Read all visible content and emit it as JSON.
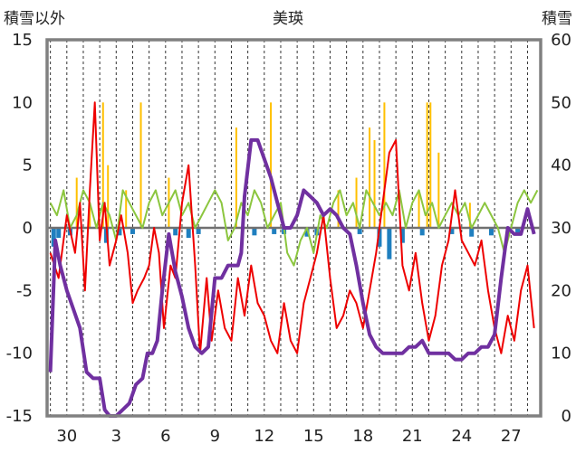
{
  "chart_data": {
    "type": "line",
    "title": "美瑛",
    "left_axis_label": "積雪以外",
    "right_axis_label": "積雪",
    "left_ylim": [
      -15,
      15
    ],
    "left_ticks": [
      15,
      10,
      5,
      0,
      -5,
      -10,
      -15
    ],
    "right_ylim": [
      0,
      60
    ],
    "right_ticks": [
      60,
      50,
      40,
      30,
      20,
      10,
      0
    ],
    "x_ticks": [
      "30",
      "3",
      "6",
      "9",
      "12",
      "15",
      "18",
      "21",
      "24",
      "27"
    ],
    "x_tick_days": [
      1,
      4,
      7,
      10,
      13,
      16,
      19,
      22,
      25,
      28
    ],
    "x_range": [
      -0.2,
      29.8
    ],
    "grid": "vertical-dashed-daily",
    "colors": {
      "temperature_red": "#ee0000",
      "green_series": "#8cc63f",
      "snow_depth": "#7030a0",
      "precip_orange": "#ffc000",
      "blue_bars": "#1f7fbf",
      "frame": "#808080",
      "grid": "#333333"
    },
    "series": [
      {
        "name": "",
        "axis": "left",
        "style": "red-line",
        "x": [
          0,
          0.5,
          1,
          1.5,
          1.8,
          2.1,
          2.4,
          2.7,
          3.0,
          3.3,
          3.6,
          4.0,
          4.3,
          4.7,
          5.0,
          5.3,
          5.7,
          6.0,
          6.3,
          6.6,
          6.9,
          7.3,
          7.6,
          8.0,
          8.4,
          8.8,
          9.1,
          9.5,
          9.8,
          10.2,
          10.6,
          11.0,
          11.4,
          11.8,
          12.2,
          12.6,
          13.0,
          13.4,
          13.8,
          14.2,
          14.6,
          15.0,
          15.4,
          15.8,
          16.2,
          16.6,
          17.0,
          17.4,
          17.8,
          18.2,
          18.6,
          19.0,
          19.4,
          19.8,
          20.2,
          20.6,
          21.0,
          21.4,
          21.8,
          22.2,
          22.6,
          23.0,
          23.4,
          23.8,
          24.2,
          24.6,
          25.0,
          25.4,
          25.8,
          26.2,
          26.6,
          27.0,
          27.4,
          27.8,
          28.2,
          28.6,
          29.0,
          29.4
        ],
        "values": [
          -2,
          -4,
          1,
          -2,
          2,
          -5,
          3,
          10,
          -1,
          2,
          -3,
          -1,
          1,
          -2,
          -6,
          -5,
          -4,
          -3,
          0,
          -2,
          -8,
          -3,
          -4,
          2,
          5,
          -3,
          -10,
          -4,
          -9,
          -5,
          -8,
          -9,
          -4,
          -7,
          -3,
          -6,
          -7,
          -9,
          -10,
          -6,
          -9,
          -10,
          -6,
          -4,
          -2,
          1,
          -4,
          -8,
          -7,
          -5,
          -6,
          -8,
          -5,
          -2,
          2,
          6,
          7,
          -3,
          -5,
          -2,
          -6,
          -9,
          -7,
          -3,
          -1,
          3,
          -1,
          -2,
          -3,
          -1,
          -5,
          -8,
          -10,
          -7,
          -9,
          -5,
          -3,
          -8
        ]
      },
      {
        "name": "",
        "axis": "left",
        "style": "green-line",
        "x": [
          0,
          0.4,
          0.8,
          1.2,
          1.6,
          2.0,
          2.4,
          2.8,
          3.2,
          3.6,
          4.0,
          4.4,
          4.8,
          5.2,
          5.6,
          6.0,
          6.4,
          6.8,
          7.2,
          7.6,
          8.0,
          8.4,
          8.8,
          9.2,
          9.6,
          10.0,
          10.4,
          10.8,
          11.2,
          11.6,
          12.0,
          12.4,
          12.8,
          13.2,
          13.6,
          14.0,
          14.4,
          14.8,
          15.2,
          15.6,
          16.0,
          16.4,
          16.8,
          17.2,
          17.6,
          18.0,
          18.4,
          18.8,
          19.2,
          19.6,
          20.0,
          20.4,
          20.8,
          21.2,
          21.6,
          22.0,
          22.4,
          22.8,
          23.2,
          23.6,
          24.0,
          24.4,
          24.8,
          25.2,
          25.6,
          26.0,
          26.4,
          26.8,
          27.2,
          27.6,
          28.0,
          28.4,
          28.8,
          29.2,
          29.6
        ],
        "values": [
          2,
          1,
          3,
          0,
          1,
          3,
          2,
          0,
          2,
          1,
          -1,
          3,
          2,
          1,
          0,
          2,
          3,
          1,
          2,
          3,
          1,
          2,
          0,
          1,
          2,
          3,
          2,
          -1,
          0,
          2,
          1,
          3,
          2,
          0,
          1,
          2,
          -2,
          -3,
          -1,
          0,
          -2,
          1,
          0,
          2,
          3,
          1,
          2,
          0,
          3,
          2,
          1,
          2,
          1,
          3,
          0,
          2,
          3,
          1,
          2,
          0,
          1,
          2,
          1,
          2,
          0,
          1,
          2,
          1,
          0,
          -2,
          0,
          2,
          3,
          2,
          3
        ]
      },
      {
        "name": "",
        "axis": "right",
        "style": "purple-thick-line",
        "x": [
          0,
          0.3,
          0.6,
          1.0,
          1.4,
          1.8,
          2.2,
          2.6,
          3.0,
          3.3,
          3.6,
          4.0,
          4.4,
          4.8,
          5.2,
          5.6,
          5.9,
          6.2,
          6.5,
          6.8,
          7.2,
          7.6,
          8.0,
          8.4,
          8.8,
          9.2,
          9.6,
          10.0,
          10.4,
          10.8,
          11.2,
          11.4,
          11.6,
          11.8,
          12.2,
          12.6,
          13.0,
          13.4,
          13.8,
          14.2,
          14.6,
          15.0,
          15.4,
          15.8,
          16.2,
          16.6,
          17.0,
          17.4,
          17.8,
          18.2,
          18.6,
          19.0,
          19.4,
          19.8,
          20.2,
          20.6,
          21.0,
          21.4,
          21.8,
          22.2,
          22.6,
          23.0,
          23.4,
          23.8,
          24.2,
          24.6,
          25.0,
          25.4,
          25.8,
          26.2,
          26.6,
          27.0,
          27.4,
          27.8,
          28.2,
          28.6,
          29.0,
          29.4
        ],
        "values": [
          7,
          28,
          24,
          20,
          17,
          14,
          7,
          6,
          6,
          1,
          0,
          0,
          1,
          2,
          5,
          6,
          10,
          10,
          12,
          20,
          29,
          23,
          19,
          14,
          11,
          10,
          11,
          22,
          22,
          24,
          24,
          24,
          26,
          35,
          44,
          44,
          41,
          38,
          34,
          30,
          30,
          32,
          36,
          35,
          34,
          32,
          33,
          32,
          30,
          29,
          24,
          18,
          13,
          11,
          10,
          10,
          10,
          10,
          11,
          11,
          12,
          10,
          10,
          10,
          10,
          9,
          9,
          10,
          10,
          11,
          11,
          13,
          22,
          30,
          29,
          29,
          33,
          29
        ]
      },
      {
        "name": "",
        "axis": "left",
        "style": "orange-bars",
        "x": [
          1.6,
          2.4,
          3.2,
          3.5,
          4.6,
          5.5,
          7.2,
          11.3,
          13.4,
          17.5,
          18.6,
          19.4,
          19.7,
          20.3,
          22.4,
          22.9,
          23.1,
          23.6,
          25.5
        ],
        "values": [
          4,
          2,
          10,
          5,
          3,
          10,
          4,
          8,
          10,
          3,
          4,
          8,
          7,
          10,
          3,
          10,
          10,
          6,
          2
        ]
      },
      {
        "name": "",
        "axis": "left",
        "style": "blue-bars",
        "x": [
          0.2,
          0.5,
          1.2,
          3.4,
          4.2,
          5.0,
          7.6,
          8.4,
          9.0,
          12.4,
          13.6,
          14.2,
          15.6,
          16.2,
          18.8,
          20.0,
          20.6,
          21.4,
          22.6,
          24.4,
          25.6,
          26.8,
          28.4
        ],
        "values": [
          -1.5,
          -0.8,
          -0.6,
          -1.2,
          -0.6,
          -0.5,
          -0.6,
          -0.8,
          -0.5,
          -0.6,
          -0.5,
          -0.5,
          -0.7,
          -0.6,
          -0.5,
          -1.5,
          -2.5,
          -1.2,
          -0.6,
          -0.5,
          -0.7,
          -0.6,
          -0.5
        ]
      }
    ]
  }
}
